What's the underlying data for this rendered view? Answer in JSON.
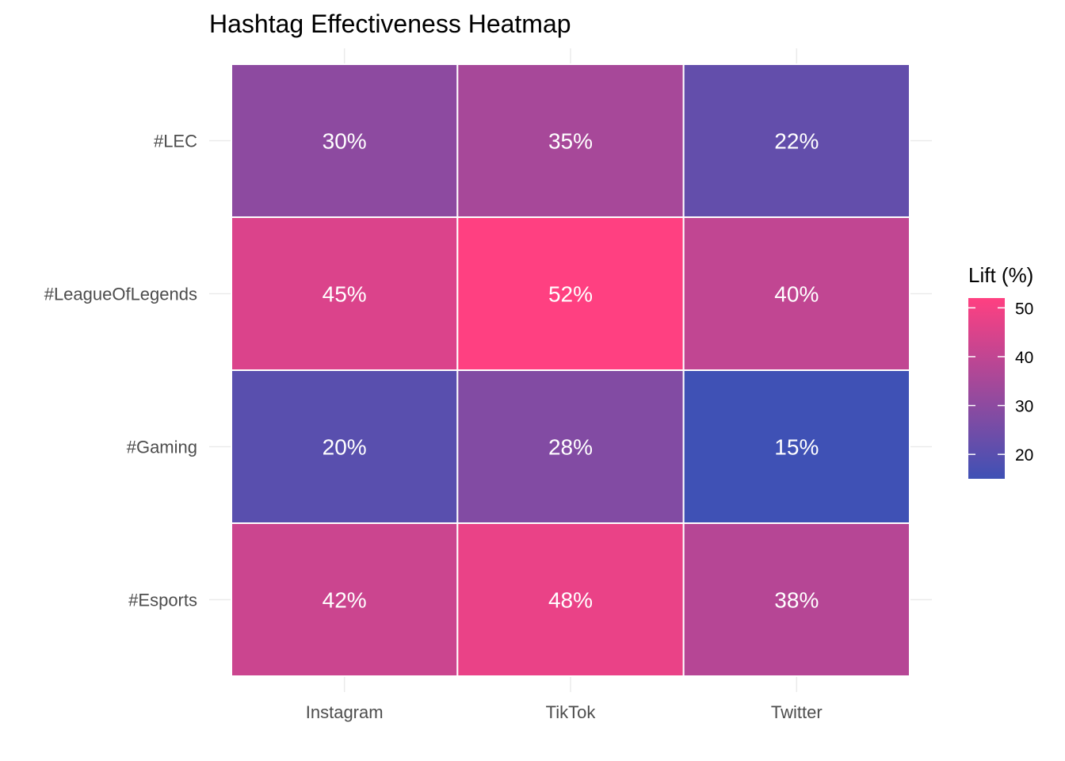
{
  "chart_data": {
    "type": "heatmap",
    "title": "Hashtag Effectiveness Heatmap",
    "xlabel": "",
    "ylabel": "",
    "x_categories": [
      "Instagram",
      "TikTok",
      "Twitter"
    ],
    "y_categories": [
      "#LEC",
      "#LeagueOfLegends",
      "#Gaming",
      "#Esports"
    ],
    "values": [
      [
        30,
        35,
        22
      ],
      [
        45,
        52,
        40
      ],
      [
        20,
        28,
        15
      ],
      [
        42,
        48,
        38
      ]
    ],
    "cell_labels": [
      [
        "30%",
        "35%",
        "22%"
      ],
      [
        "45%",
        "52%",
        "40%"
      ],
      [
        "20%",
        "28%",
        "15%"
      ],
      [
        "42%",
        "48%",
        "38%"
      ]
    ],
    "color_scale": {
      "low_color": "#3f51b5",
      "high_color": "#ff4081",
      "min": 15,
      "max": 52
    },
    "legend": {
      "title": "Lift (%)",
      "ticks": [
        20,
        30,
        40,
        50
      ],
      "tick_labels": [
        "20",
        "30",
        "40",
        "50"
      ],
      "position": "right"
    }
  }
}
